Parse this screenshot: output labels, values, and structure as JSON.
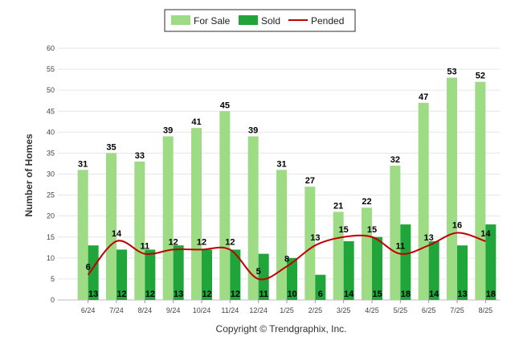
{
  "legend": {
    "for_sale": "For Sale",
    "sold": "Sold",
    "pended": "Pended"
  },
  "credit": "Copyright © Trendgraphix, Inc.",
  "colors": {
    "for_sale": "#9ddb85",
    "sold": "#1fa53a",
    "pended": "#c00000",
    "grid": "#e6e6e6"
  },
  "chart_data": {
    "type": "bar",
    "categories": [
      "6/24",
      "7/24",
      "8/24",
      "9/24",
      "10/24",
      "11/24",
      "12/24",
      "1/25",
      "2/25",
      "3/25",
      "4/25",
      "5/25",
      "6/25",
      "7/25",
      "8/25"
    ],
    "series": [
      {
        "name": "For Sale",
        "type": "bar",
        "values": [
          31,
          35,
          33,
          39,
          41,
          45,
          39,
          31,
          27,
          21,
          22,
          32,
          47,
          53,
          52
        ]
      },
      {
        "name": "Sold",
        "type": "bar",
        "values": [
          13,
          12,
          12,
          13,
          12,
          12,
          11,
          10,
          6,
          14,
          15,
          18,
          14,
          13,
          18
        ]
      },
      {
        "name": "Pended",
        "type": "line",
        "values": [
          6,
          14,
          11,
          12,
          12,
          12,
          5,
          8,
          13,
          15,
          15,
          11,
          13,
          16,
          14
        ]
      }
    ],
    "ylabel": "Number of Homes",
    "xlabel": "",
    "ylim": [
      0,
      60
    ],
    "yticks": [
      0,
      5,
      10,
      15,
      20,
      25,
      30,
      35,
      40,
      45,
      50,
      55,
      60
    ],
    "grid": true,
    "legend_position": "top-center"
  }
}
